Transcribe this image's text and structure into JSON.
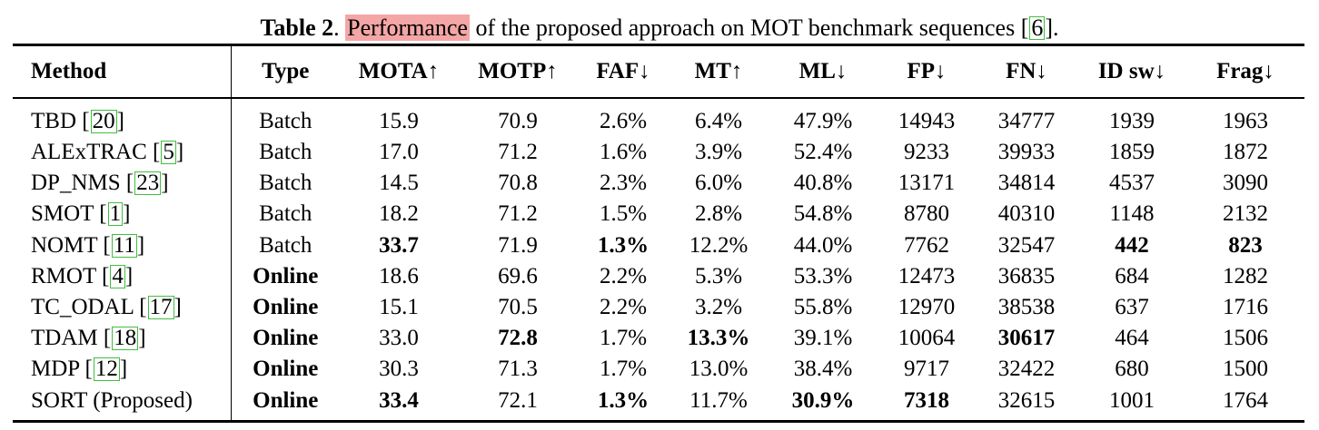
{
  "caption": {
    "label": "Table 2",
    "sep": ".",
    "highlight": "Performance",
    "rest": "of the proposed approach on MOT benchmark sequences [",
    "ref": "6",
    "end": "]."
  },
  "columns": [
    "Method",
    "Type",
    "MOTA↑",
    "MOTP↑",
    "FAF↓",
    "MT↑",
    "ML↓",
    "FP↓",
    "FN↓",
    "ID sw↓",
    "Frag↓"
  ],
  "rows": [
    {
      "method": "TBD",
      "ref": "20",
      "type": "Batch",
      "mota": "15.9",
      "motp": "70.9",
      "faf": "2.6%",
      "mt": "6.4%",
      "ml": "47.9%",
      "fp": "14943",
      "fn": "34777",
      "idsw": "1939",
      "frag": "1963"
    },
    {
      "method": "ALExTRAC",
      "ref": "5",
      "type": "Batch",
      "mota": "17.0",
      "motp": "71.2",
      "faf": "1.6%",
      "mt": "3.9%",
      "ml": "52.4%",
      "fp": "9233",
      "fn": "39933",
      "idsw": "1859",
      "frag": "1872"
    },
    {
      "method": "DP_NMS",
      "ref": "23",
      "type": "Batch",
      "mota": "14.5",
      "motp": "70.8",
      "faf": "2.3%",
      "mt": "6.0%",
      "ml": "40.8%",
      "fp": "13171",
      "fn": "34814",
      "idsw": "4537",
      "frag": "3090"
    },
    {
      "method": "SMOT",
      "ref": "1",
      "type": "Batch",
      "mota": "18.2",
      "motp": "71.2",
      "faf": "1.5%",
      "mt": "2.8%",
      "ml": "54.8%",
      "fp": "8780",
      "fn": "40310",
      "idsw": "1148",
      "frag": "2132"
    },
    {
      "method": "NOMT",
      "ref": "11",
      "type": "Batch",
      "mota": "33.7",
      "motp": "71.9",
      "faf": "1.3%",
      "mt": "12.2%",
      "ml": "44.0%",
      "fp": "7762",
      "fn": "32547",
      "idsw": "442",
      "frag": "823"
    },
    {
      "method": "RMOT",
      "ref": "4",
      "type": "Online",
      "mota": "18.6",
      "motp": "69.6",
      "faf": "2.2%",
      "mt": "5.3%",
      "ml": "53.3%",
      "fp": "12473",
      "fn": "36835",
      "idsw": "684",
      "frag": "1282"
    },
    {
      "method": "TC_ODAL",
      "ref": "17",
      "type": "Online",
      "mota": "15.1",
      "motp": "70.5",
      "faf": "2.2%",
      "mt": "3.2%",
      "ml": "55.8%",
      "fp": "12970",
      "fn": "38538",
      "idsw": "637",
      "frag": "1716"
    },
    {
      "method": "TDAM",
      "ref": "18",
      "type": "Online",
      "mota": "33.0",
      "motp": "72.8",
      "faf": "1.7%",
      "mt": "13.3%",
      "ml": "39.1%",
      "fp": "10064",
      "fn": "30617",
      "idsw": "464",
      "frag": "1506"
    },
    {
      "method": "MDP",
      "ref": "12",
      "type": "Online",
      "mota": "30.3",
      "motp": "71.3",
      "faf": "1.7%",
      "mt": "13.0%",
      "ml": "38.4%",
      "fp": "9717",
      "fn": "32422",
      "idsw": "680",
      "frag": "1500"
    },
    {
      "method": "SORT (Proposed)",
      "ref": "",
      "type": "Online",
      "mota": "33.4",
      "motp": "72.1",
      "faf": "1.3%",
      "mt": "11.7%",
      "ml": "30.9%",
      "fp": "7318",
      "fn": "32615",
      "idsw": "1001",
      "frag": "1764"
    }
  ]
}
